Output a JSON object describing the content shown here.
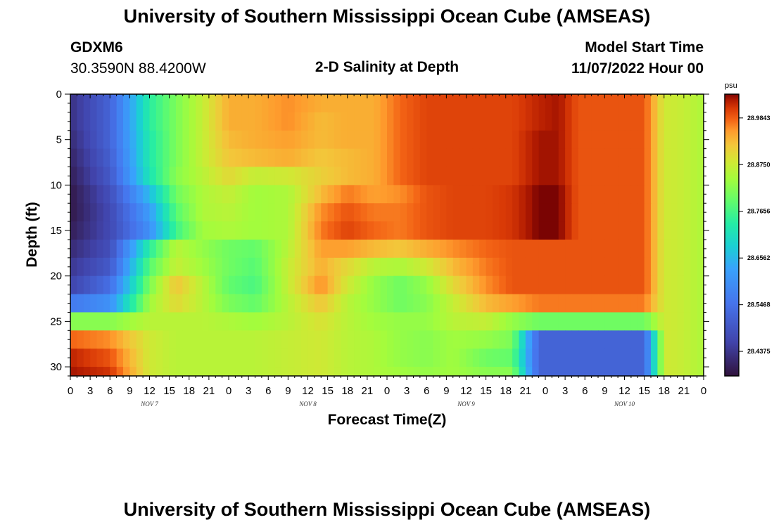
{
  "header": {
    "title": "University of Southern Mississippi Ocean Cube (AMSEAS)",
    "station_id": "GDXM6",
    "station_coords": "30.3590N  88.4200W",
    "plot_title": "2-D Salinity at Depth",
    "model_start_label": "Model Start Time",
    "model_start_value": "11/07/2022 Hour 00"
  },
  "footer": {
    "title": "University of Southern Mississippi Ocean Cube (AMSEAS)"
  },
  "chart_data": {
    "type": "heatmap",
    "title": "2-D Salinity at Depth",
    "xlabel": "Forecast Time(Z)",
    "ylabel": "Depth (ft)",
    "x_tick_labels": [
      "0",
      "3",
      "6",
      "9",
      "12",
      "15",
      "18",
      "21",
      "0",
      "3",
      "6",
      "9",
      "12",
      "15",
      "18",
      "21",
      "0",
      "3",
      "6",
      "9",
      "12",
      "15",
      "18",
      "21",
      "0",
      "3",
      "6",
      "9",
      "12",
      "15",
      "18",
      "21",
      "0"
    ],
    "x_range_hours": [
      0,
      96
    ],
    "day_labels": [
      {
        "label": "NOV 7",
        "hour": 12
      },
      {
        "label": "NOV 8",
        "hour": 36
      },
      {
        "label": "NOV 9",
        "hour": 60
      },
      {
        "label": "NOV 10",
        "hour": 84
      }
    ],
    "y_range_ft": [
      0,
      31
    ],
    "y_ticks": [
      "0",
      "5",
      "10",
      "15",
      "20",
      "25",
      "30"
    ],
    "colorbar": {
      "unit": "psu",
      "range": [
        28.38,
        29.04
      ],
      "ticks": [
        "28.9843",
        "28.8750",
        "28.7656",
        "28.6562",
        "28.5468",
        "28.4375"
      ]
    },
    "depth_bins_ft": [
      0,
      2,
      4,
      6,
      8,
      10,
      12,
      14,
      16,
      18,
      20,
      22,
      24,
      26,
      28,
      30,
      31
    ],
    "time_anchors_hours": [
      0,
      6,
      12,
      16,
      20,
      24,
      28,
      33,
      38,
      42,
      46,
      50,
      54,
      58,
      63,
      67,
      71,
      74,
      77,
      81,
      84,
      87,
      90,
      93,
      96
    ],
    "salinity_psu": [
      [
        28.43,
        28.52,
        28.74,
        28.81,
        28.87,
        28.94,
        28.94,
        28.96,
        28.94,
        28.94,
        28.94,
        28.98,
        29.0,
        29.0,
        29.0,
        29.0,
        29.02,
        29.03,
        28.99,
        28.99,
        28.99,
        28.99,
        28.88,
        28.87,
        28.85
      ],
      [
        28.43,
        28.52,
        28.74,
        28.81,
        28.87,
        28.94,
        28.94,
        28.96,
        28.93,
        28.94,
        28.94,
        28.98,
        29.0,
        29.0,
        29.0,
        29.0,
        29.02,
        29.03,
        28.99,
        28.99,
        28.99,
        28.99,
        28.88,
        28.87,
        28.85
      ],
      [
        28.42,
        28.52,
        28.73,
        28.81,
        28.87,
        28.93,
        28.94,
        28.95,
        28.93,
        28.94,
        28.94,
        28.98,
        29.0,
        29.0,
        29.0,
        29.0,
        29.03,
        29.03,
        28.99,
        28.99,
        28.99,
        28.99,
        28.88,
        28.87,
        28.85
      ],
      [
        28.41,
        28.51,
        28.73,
        28.81,
        28.87,
        28.92,
        28.93,
        28.94,
        28.92,
        28.93,
        28.94,
        28.98,
        29.0,
        29.0,
        29.0,
        29.0,
        29.03,
        29.03,
        28.99,
        28.99,
        28.99,
        28.99,
        28.88,
        28.87,
        28.85
      ],
      [
        28.4,
        28.5,
        28.72,
        28.82,
        28.86,
        28.9,
        28.87,
        28.88,
        28.91,
        28.93,
        28.94,
        28.98,
        29.0,
        29.0,
        29.0,
        29.0,
        29.03,
        29.03,
        28.99,
        28.99,
        28.99,
        28.99,
        28.88,
        28.87,
        28.85
      ],
      [
        28.39,
        28.48,
        28.66,
        28.8,
        28.85,
        28.87,
        28.84,
        28.85,
        28.93,
        28.97,
        28.95,
        28.96,
        28.99,
        29.0,
        29.0,
        29.01,
        29.04,
        29.04,
        28.99,
        28.99,
        28.99,
        28.99,
        28.88,
        28.87,
        28.85
      ],
      [
        28.39,
        28.47,
        28.62,
        28.78,
        28.85,
        28.86,
        28.84,
        28.85,
        28.96,
        28.99,
        28.97,
        28.97,
        28.99,
        29.0,
        29.0,
        29.01,
        29.04,
        29.04,
        28.99,
        28.99,
        28.99,
        28.99,
        28.88,
        28.87,
        28.85
      ],
      [
        28.4,
        28.47,
        28.6,
        28.76,
        28.84,
        28.85,
        28.84,
        28.85,
        28.97,
        29.0,
        28.98,
        28.97,
        28.99,
        29.0,
        29.0,
        29.01,
        29.04,
        29.04,
        28.99,
        28.99,
        28.99,
        28.99,
        28.88,
        28.87,
        28.85
      ],
      [
        28.42,
        28.48,
        28.74,
        28.86,
        28.83,
        28.8,
        28.79,
        28.86,
        28.95,
        28.95,
        28.93,
        28.92,
        28.94,
        28.96,
        28.98,
        28.99,
        28.99,
        28.99,
        28.99,
        28.99,
        28.99,
        28.99,
        28.88,
        28.87,
        28.85
      ],
      [
        28.44,
        28.5,
        28.78,
        28.87,
        28.84,
        28.8,
        28.78,
        28.87,
        28.94,
        28.9,
        28.86,
        28.85,
        28.88,
        28.93,
        28.97,
        28.99,
        28.99,
        28.99,
        28.99,
        28.99,
        28.99,
        28.99,
        28.88,
        28.87,
        28.85
      ],
      [
        28.46,
        28.54,
        28.81,
        28.92,
        28.86,
        28.79,
        28.77,
        28.87,
        28.96,
        28.88,
        28.83,
        28.8,
        28.83,
        28.9,
        28.96,
        28.99,
        28.99,
        28.99,
        28.99,
        28.99,
        28.99,
        28.99,
        28.88,
        28.87,
        28.85
      ],
      [
        28.56,
        28.6,
        28.84,
        28.9,
        28.86,
        28.81,
        28.79,
        28.86,
        28.92,
        28.86,
        28.83,
        28.8,
        28.82,
        28.87,
        28.93,
        28.95,
        28.97,
        28.97,
        28.97,
        28.97,
        28.97,
        28.97,
        28.88,
        28.87,
        28.85
      ],
      [
        28.82,
        28.82,
        28.86,
        28.86,
        28.86,
        28.85,
        28.84,
        28.86,
        28.89,
        28.86,
        28.84,
        28.83,
        28.83,
        28.86,
        28.87,
        28.83,
        28.8,
        28.8,
        28.8,
        28.8,
        28.8,
        28.8,
        28.88,
        28.87,
        28.85
      ],
      [
        28.98,
        28.96,
        28.88,
        28.86,
        28.86,
        28.86,
        28.86,
        28.87,
        28.88,
        28.86,
        28.85,
        28.83,
        28.82,
        28.84,
        28.83,
        28.81,
        28.52,
        28.52,
        28.52,
        28.52,
        28.52,
        28.52,
        28.88,
        28.87,
        28.85
      ],
      [
        29.02,
        28.99,
        28.88,
        28.86,
        28.86,
        28.86,
        28.86,
        28.87,
        28.88,
        28.86,
        28.85,
        28.83,
        28.82,
        28.84,
        28.8,
        28.79,
        28.52,
        28.52,
        28.52,
        28.52,
        28.52,
        28.52,
        28.88,
        28.87,
        28.85
      ],
      [
        29.03,
        29.01,
        28.88,
        28.86,
        28.86,
        28.86,
        28.86,
        28.87,
        28.88,
        28.86,
        28.85,
        28.84,
        28.83,
        28.84,
        28.82,
        28.82,
        28.52,
        28.52,
        28.52,
        28.52,
        28.52,
        28.52,
        28.88,
        28.87,
        28.85
      ]
    ]
  }
}
